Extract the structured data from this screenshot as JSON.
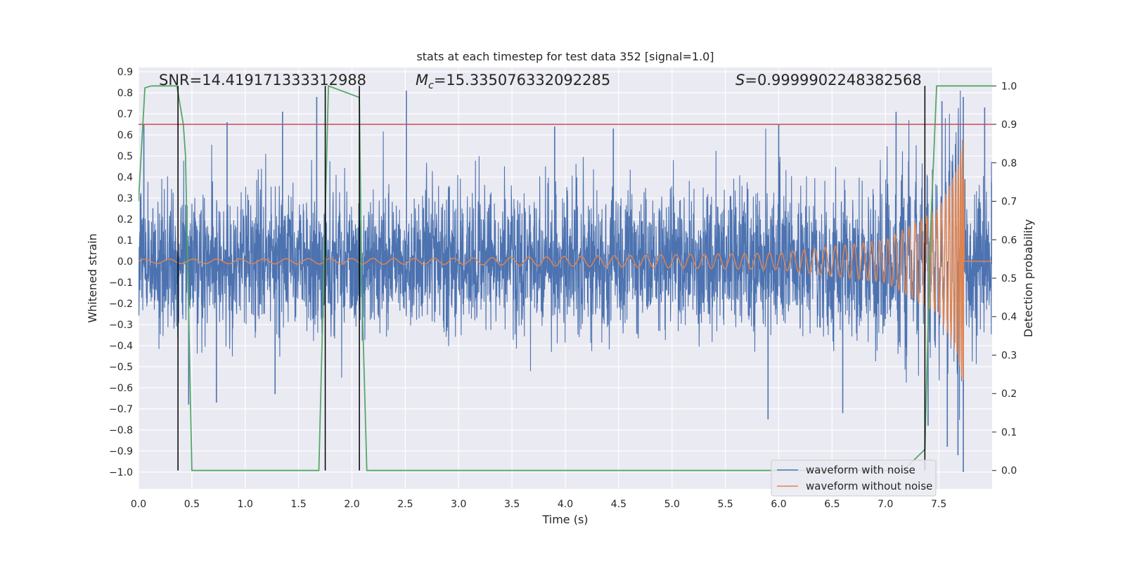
{
  "chart_data": {
    "type": "line",
    "title": "stats at each timestep for test data 352 [signal=1.0]",
    "xlabel": "Time (s)",
    "ylabel": "Whitened strain",
    "y2label": "Detection probability",
    "xlim": [
      0,
      8.0
    ],
    "ylim": [
      -1.08,
      0.92
    ],
    "y2lim": [
      -0.048,
      1.048
    ],
    "xticks": [
      "0.0",
      "0.5",
      "1.0",
      "1.5",
      "2.0",
      "2.5",
      "3.0",
      "3.5",
      "4.0",
      "4.5",
      "5.0",
      "5.5",
      "6.0",
      "6.5",
      "7.0",
      "7.5"
    ],
    "yticks": [
      "0.9",
      "0.8",
      "0.7",
      "0.6",
      "0.5",
      "0.4",
      "0.3",
      "0.2",
      "0.1",
      "0.0",
      "−0.1",
      "−0.2",
      "−0.3",
      "−0.4",
      "−0.5",
      "−0.6",
      "−0.7",
      "−0.8",
      "−0.9",
      "−1.0"
    ],
    "y2ticks": [
      "1.0",
      "0.9",
      "0.8",
      "0.7",
      "0.6",
      "0.5",
      "0.4",
      "0.3",
      "0.2",
      "0.1",
      "0.0"
    ],
    "annotations": {
      "snr": "SNR=14.419171333312988",
      "mc_symbol": "M",
      "mc_sub": "c",
      "mc_value": "=15.335076332092285",
      "s_symbol": "S",
      "s_value": "=0.9999902248382568"
    },
    "threshold": {
      "axis": "y2",
      "value": 0.9,
      "color": "#c44e52"
    },
    "vlines_x": [
      0.37,
      1.75,
      2.07,
      7.37
    ],
    "legend": {
      "position": "lower-right",
      "entries": [
        {
          "label": "waveform with noise",
          "color": "#4c72b0"
        },
        {
          "label": "waveform without noise",
          "color": "#dd8452"
        }
      ]
    },
    "series": [
      {
        "name": "waveform with noise",
        "color": "#4c72b0",
        "envelope": {
          "typical_abs": 0.27,
          "peak_max": 0.81,
          "peak_min": -1.0
        },
        "notable_peaks": [
          {
            "x": 0.05,
            "y": 0.65
          },
          {
            "x": 0.83,
            "y": 0.66
          },
          {
            "x": 1.35,
            "y": 0.71
          },
          {
            "x": 1.67,
            "y": 0.78
          },
          {
            "x": 2.51,
            "y": 0.81
          },
          {
            "x": 3.9,
            "y": 0.64
          },
          {
            "x": 4.45,
            "y": 0.63
          },
          {
            "x": 6.0,
            "y": 0.65
          },
          {
            "x": 7.1,
            "y": 0.71
          },
          {
            "x": 7.53,
            "y": 0.76
          },
          {
            "x": 7.73,
            "y": 0.78
          },
          {
            "x": 7.93,
            "y": 0.73
          },
          {
            "x": 0.47,
            "y": -0.68
          },
          {
            "x": 0.73,
            "y": -0.67
          },
          {
            "x": 1.28,
            "y": -0.63
          },
          {
            "x": 5.9,
            "y": -0.75
          },
          {
            "x": 6.6,
            "y": -0.72
          },
          {
            "x": 7.4,
            "y": -0.78
          },
          {
            "x": 7.68,
            "y": -0.92
          },
          {
            "x": 7.73,
            "y": -1.0
          },
          {
            "x": 7.58,
            "y": -0.88
          }
        ]
      },
      {
        "name": "waveform without noise",
        "color": "#dd8452",
        "description_points": [
          {
            "x": 0.0,
            "amp": 0.01
          },
          {
            "x": 3.0,
            "amp": 0.015
          },
          {
            "x": 6.0,
            "amp": 0.04
          },
          {
            "x": 7.0,
            "amp": 0.1
          },
          {
            "x": 7.5,
            "amp": 0.25
          },
          {
            "x": 7.68,
            "amp": 0.45
          },
          {
            "x": 7.73,
            "amp": 0.6
          },
          {
            "x": 7.75,
            "amp": 0.0
          }
        ]
      },
      {
        "name": "Detection probability",
        "axis": "y2",
        "color": "#55a868",
        "x": [
          0.0,
          0.06,
          0.12,
          0.36,
          0.42,
          0.44,
          0.5,
          1.69,
          1.78,
          2.07,
          2.09,
          2.14,
          7.17,
          7.37,
          7.42,
          7.48,
          7.65,
          8.0
        ],
        "y": [
          0.7,
          0.995,
          1.0,
          1.0,
          0.9,
          0.82,
          0.0,
          0.0,
          1.0,
          0.97,
          0.5,
          0.0,
          0.0,
          0.055,
          0.6,
          1.0,
          1.0,
          1.0
        ]
      }
    ]
  }
}
